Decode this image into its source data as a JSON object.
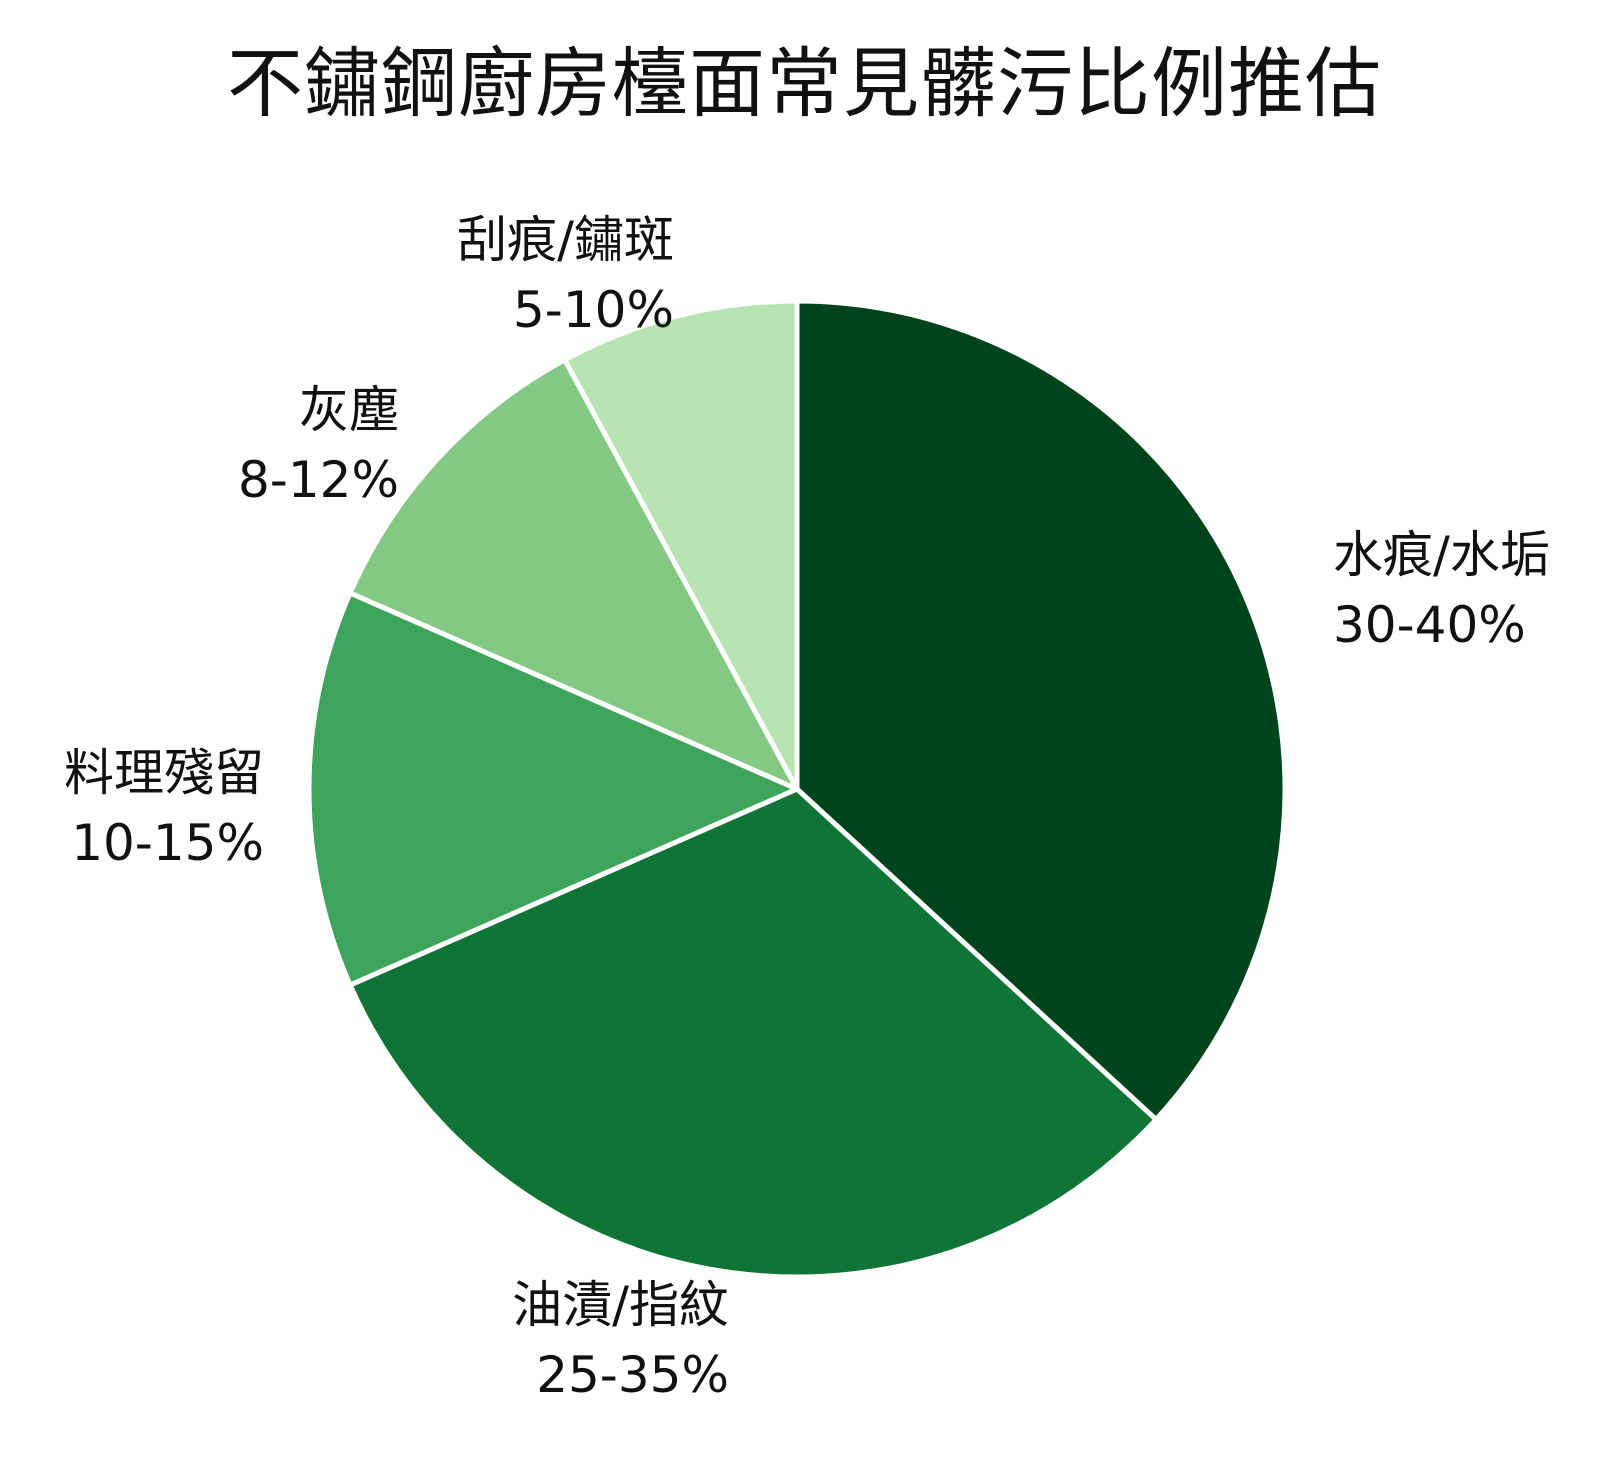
{
  "chart_data": {
    "type": "pie",
    "title": "不鏽鋼廚房檯面常見髒污比例推估",
    "start_angle": "12 o'clock, clockwise",
    "legend": "none (direct labels)",
    "slices": [
      {
        "label": "水痕/水垢",
        "range": "30-40%",
        "value": 35,
        "color": "#00441b"
      },
      {
        "label": "油漬/指紋",
        "range": "25-35%",
        "value": 30,
        "color": "#0f7435"
      },
      {
        "label": "料理殘留",
        "range": "10-15%",
        "value": 12.5,
        "color": "#3fa45b"
      },
      {
        "label": "灰塵",
        "range": "8-12%",
        "value": 10,
        "color": "#83c883"
      },
      {
        "label": "刮痕/鏽斑",
        "range": "5-10%",
        "value": 7.5,
        "color": "#b8e3b2"
      }
    ],
    "categories": [
      "水痕/水垢",
      "油漬/指紋",
      "料理殘留",
      "灰塵",
      "刮痕/鏽斑"
    ],
    "values": [
      35,
      30,
      12.5,
      10,
      7.5
    ],
    "value_labels": [
      "30-40%",
      "25-35%",
      "10-15%",
      "8-12%",
      "5-10%"
    ]
  }
}
